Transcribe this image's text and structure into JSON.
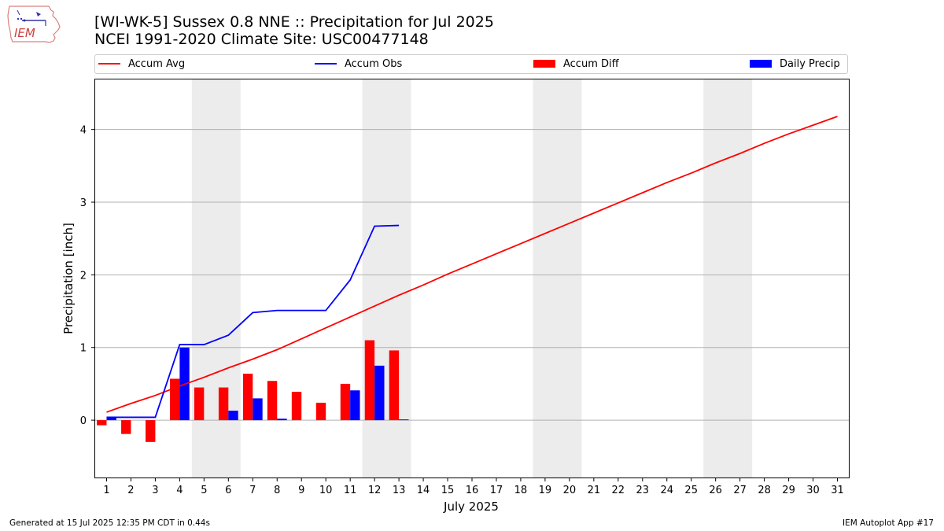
{
  "title_line1": "[WI-WK-5] Sussex 0.8 NNE :: Precipitation for Jul 2025",
  "title_line2": "NCEI 1991-2020 Climate Site: USC00477148",
  "logo_text": "IEM",
  "footer_left": "Generated at 15 Jul 2025 12:35 PM CDT in 0.44s",
  "footer_right": "IEM Autoplot App #17",
  "legend": [
    {
      "label": "Accum Avg",
      "kind": "line",
      "color": "#ff0000"
    },
    {
      "label": "Accum Obs",
      "kind": "line",
      "color": "#0000ff"
    },
    {
      "label": "Accum Diff",
      "kind": "box",
      "color": "#ff0000"
    },
    {
      "label": "Daily Precip",
      "kind": "box",
      "color": "#0000ff"
    }
  ],
  "chart_data": {
    "type": "bar",
    "xlabel": "July 2025",
    "ylabel": "Precipitation [inch]",
    "xlim": [
      0.5,
      31.5
    ],
    "ylim": [
      -0.8,
      4.7
    ],
    "yticks": [
      0,
      1,
      2,
      3,
      4
    ],
    "x": [
      1,
      2,
      3,
      4,
      5,
      6,
      7,
      8,
      9,
      10,
      11,
      12,
      13,
      14,
      15,
      16,
      17,
      18,
      19,
      20,
      21,
      22,
      23,
      24,
      25,
      26,
      27,
      28,
      29,
      30,
      31
    ],
    "weekend_bands": [
      [
        4.5,
        6.5
      ],
      [
        11.5,
        13.5
      ],
      [
        18.5,
        20.5
      ],
      [
        25.5,
        27.5
      ]
    ],
    "grid": "horizontal",
    "series": [
      {
        "name": "Accum Avg",
        "kind": "line",
        "color": "#ff0000",
        "x": [
          1,
          2,
          3,
          4,
          5,
          6,
          7,
          8,
          9,
          10,
          11,
          12,
          13,
          14,
          15,
          16,
          17,
          18,
          19,
          20,
          21,
          22,
          23,
          24,
          25,
          26,
          27,
          28,
          29,
          30,
          31
        ],
        "values": [
          0.11,
          0.23,
          0.34,
          0.47,
          0.59,
          0.72,
          0.84,
          0.97,
          1.12,
          1.27,
          1.42,
          1.57,
          1.72,
          1.86,
          2.01,
          2.15,
          2.29,
          2.43,
          2.57,
          2.71,
          2.85,
          2.99,
          3.13,
          3.27,
          3.4,
          3.54,
          3.67,
          3.81,
          3.94,
          4.06,
          4.18
        ]
      },
      {
        "name": "Accum Obs",
        "kind": "line",
        "color": "#0000ff",
        "x": [
          1,
          2,
          3,
          4,
          5,
          6,
          7,
          8,
          9,
          10,
          11,
          12,
          13
        ],
        "values": [
          0.04,
          0.04,
          0.04,
          1.04,
          1.04,
          1.17,
          1.48,
          1.51,
          1.51,
          1.51,
          1.93,
          2.67,
          2.68
        ]
      },
      {
        "name": "Accum Diff",
        "kind": "bar",
        "color": "#ff0000",
        "x": [
          1,
          2,
          3,
          4,
          5,
          6,
          7,
          8,
          9,
          10,
          11,
          12,
          13
        ],
        "values": [
          -0.07,
          -0.19,
          -0.3,
          0.57,
          0.45,
          0.45,
          0.64,
          0.54,
          0.39,
          0.24,
          0.5,
          1.1,
          0.96
        ]
      },
      {
        "name": "Daily Precip",
        "kind": "bar",
        "color": "#0000ff",
        "x": [
          1,
          2,
          3,
          4,
          5,
          6,
          7,
          8,
          9,
          10,
          11,
          12,
          13
        ],
        "values": [
          0.04,
          0.0,
          0.0,
          1.0,
          0.0,
          0.13,
          0.3,
          0.02,
          0.0,
          0.0,
          0.41,
          0.75,
          0.01
        ]
      }
    ]
  }
}
